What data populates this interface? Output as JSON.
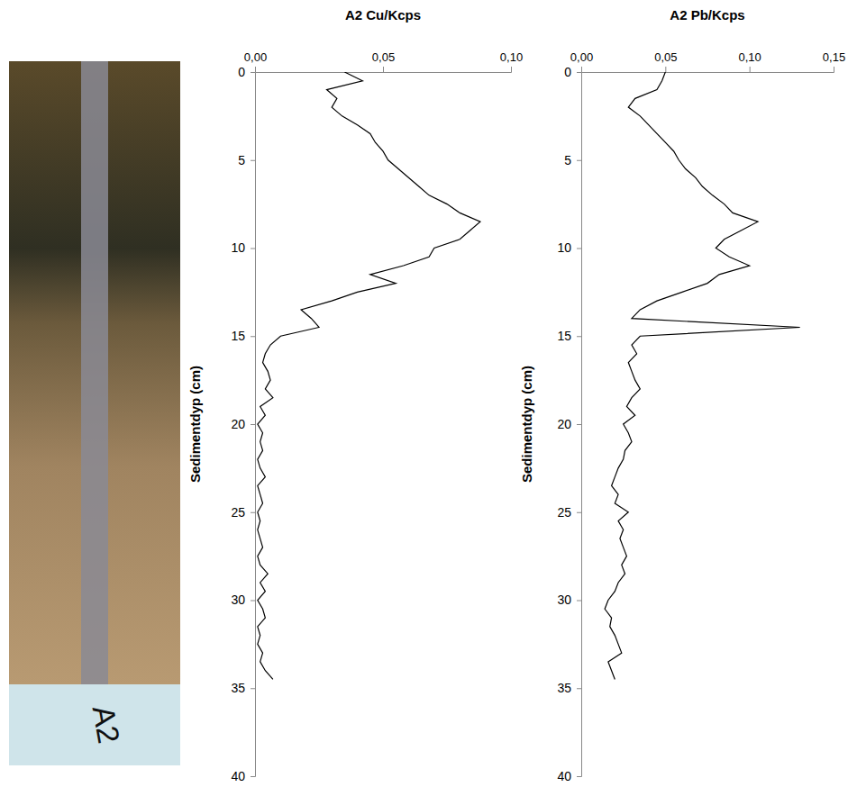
{
  "core_image": {
    "label": "A2"
  },
  "chart_data": [
    {
      "type": "line",
      "title": "A2 Cu/Kcps",
      "x_label": "Sedimentdyp (cm)",
      "orientation": "horizontal",
      "tick_labels": true,
      "x": [
        0,
        0.5,
        1,
        1.5,
        2,
        2.5,
        3,
        3.5,
        4,
        4.5,
        5,
        5.5,
        6,
        6.5,
        7,
        7.5,
        8,
        8.5,
        9,
        9.5,
        10,
        10.5,
        11,
        11.5,
        12,
        12.5,
        13,
        13.5,
        14,
        14.5,
        15,
        15.5,
        16,
        16.5,
        17,
        17.5,
        18,
        18.5,
        19,
        19.5,
        20,
        20.5,
        21,
        21.5,
        22,
        22.5,
        23,
        23.5,
        24,
        24.5,
        25,
        25.5,
        26,
        26.5,
        27,
        27.5,
        28,
        28.5,
        29,
        29.5,
        30,
        30.5,
        31,
        31.5,
        32,
        32.5,
        33,
        33.5,
        34,
        34.5
      ],
      "series": [
        {
          "name": "Cu",
          "color": "#000000",
          "values": [
            0.035,
            0.042,
            0.028,
            0.032,
            0.03,
            0.034,
            0.04,
            0.045,
            0.047,
            0.05,
            0.052,
            0.056,
            0.06,
            0.064,
            0.068,
            0.075,
            0.08,
            0.088,
            0.084,
            0.08,
            0.07,
            0.068,
            0.058,
            0.045,
            0.055,
            0.04,
            0.03,
            0.018,
            0.022,
            0.025,
            0.01,
            0.006,
            0.004,
            0.003,
            0.005,
            0.006,
            0.004,
            0.007,
            0.002,
            0.004,
            0.001,
            0.003,
            0.002,
            0.003,
            0.001,
            0.002,
            0.004,
            0.001,
            0.002,
            0.003,
            0.001,
            0.002,
            0.001,
            0.002,
            0.003,
            0.001,
            0.002,
            0.005,
            0.002,
            0.004,
            0.001,
            0.003,
            0.004,
            0.001,
            0.002,
            0.001,
            0.003,
            0.002,
            0.004,
            0.007
          ]
        }
      ],
      "xlim": [
        0,
        40
      ],
      "xticks": [
        0,
        5,
        10,
        15,
        20,
        25,
        30,
        35,
        40
      ],
      "ylim": [
        0,
        0.1
      ],
      "yticks": [
        {
          "value": 0,
          "label": "0,00"
        },
        {
          "value": 0.05,
          "label": "0,05"
        },
        {
          "value": 0.1,
          "label": "0,10"
        }
      ]
    },
    {
      "type": "line",
      "title": "A2 Pb/Kcps",
      "x_label": "Sedimentdyp (cm)",
      "orientation": "horizontal",
      "tick_labels": true,
      "x": [
        0,
        0.5,
        1,
        1.5,
        2,
        2.5,
        3,
        3.5,
        4,
        4.5,
        5,
        5.5,
        6,
        6.5,
        7,
        7.5,
        8,
        8.5,
        9,
        9.5,
        10,
        10.5,
        11,
        11.5,
        12,
        12.5,
        13,
        13.5,
        14,
        14.5,
        15,
        15.5,
        16,
        16.5,
        17,
        17.5,
        18,
        18.5,
        19,
        19.5,
        20,
        20.5,
        21,
        21.5,
        22,
        22.5,
        23,
        23.5,
        24,
        24.5,
        25,
        25.5,
        26,
        26.5,
        27,
        27.5,
        28,
        28.5,
        29,
        29.5,
        30,
        30.5,
        31,
        31.5,
        32,
        32.5,
        33,
        33.5,
        34,
        34.5
      ],
      "series": [
        {
          "name": "Pb",
          "color": "#000000",
          "values": [
            0.05,
            0.048,
            0.045,
            0.032,
            0.028,
            0.035,
            0.04,
            0.045,
            0.05,
            0.055,
            0.058,
            0.062,
            0.068,
            0.072,
            0.078,
            0.085,
            0.09,
            0.105,
            0.095,
            0.085,
            0.08,
            0.088,
            0.1,
            0.082,
            0.075,
            0.06,
            0.045,
            0.035,
            0.03,
            0.13,
            0.035,
            0.03,
            0.033,
            0.028,
            0.03,
            0.032,
            0.035,
            0.03,
            0.027,
            0.032,
            0.025,
            0.028,
            0.03,
            0.026,
            0.025,
            0.022,
            0.02,
            0.018,
            0.022,
            0.02,
            0.028,
            0.022,
            0.025,
            0.023,
            0.025,
            0.027,
            0.024,
            0.026,
            0.022,
            0.02,
            0.016,
            0.014,
            0.018,
            0.017,
            0.02,
            0.022,
            0.024,
            0.016,
            0.018,
            0.02
          ]
        }
      ],
      "xlim": [
        0,
        40
      ],
      "xticks": [
        0,
        5,
        10,
        15,
        20,
        25,
        30,
        35,
        40
      ],
      "ylim": [
        0,
        0.15
      ],
      "yticks": [
        {
          "value": 0,
          "label": "0,00"
        },
        {
          "value": 0.05,
          "label": "0,05"
        },
        {
          "value": 0.1,
          "label": "0,10"
        },
        {
          "value": 0.15,
          "label": "0,15"
        }
      ]
    }
  ]
}
